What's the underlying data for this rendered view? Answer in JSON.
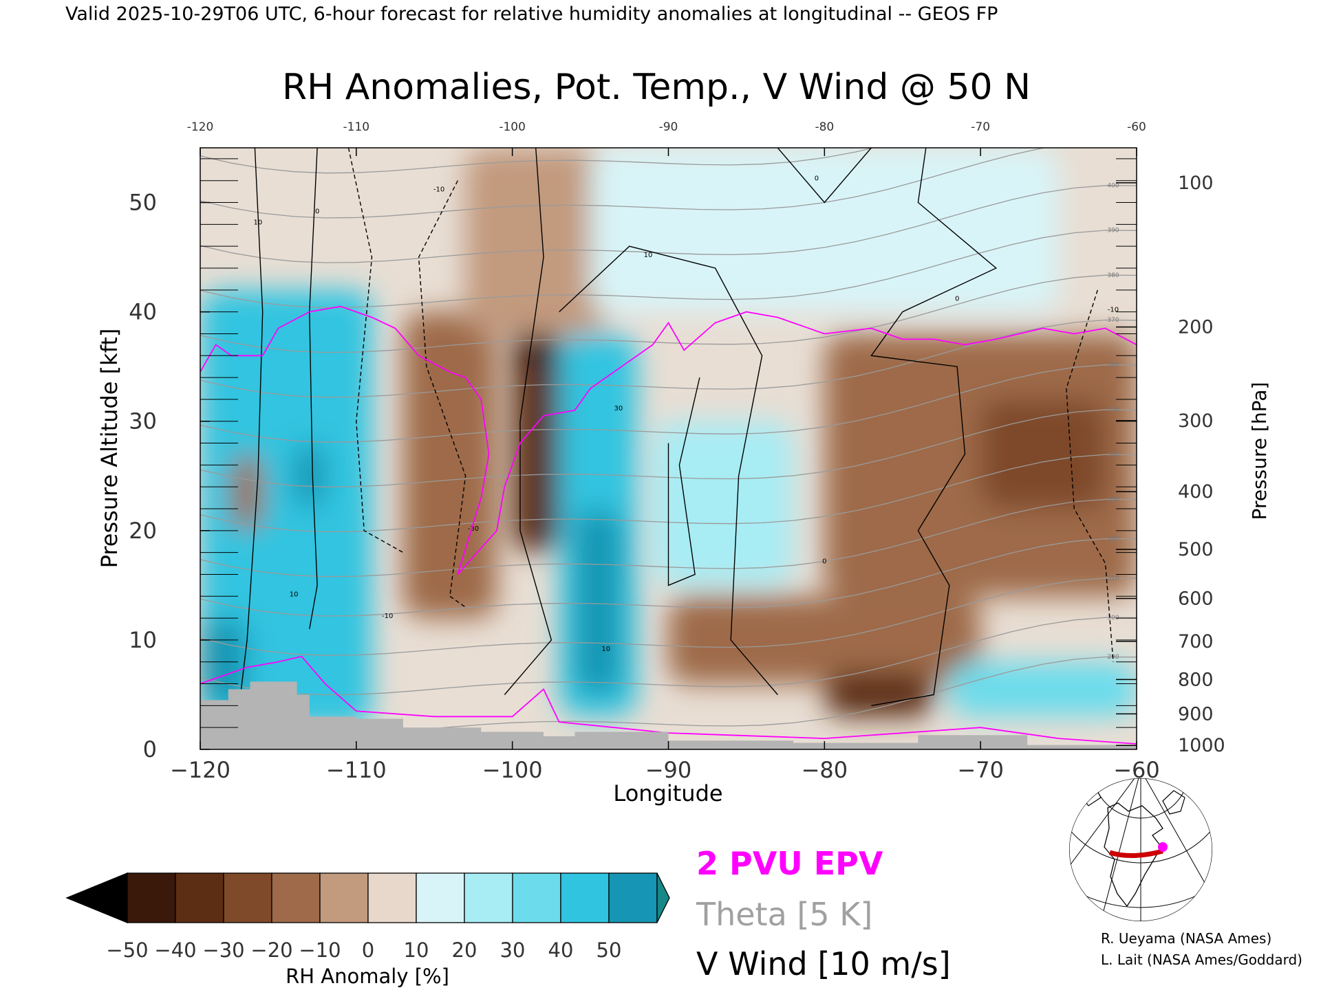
{
  "header": {
    "valid_line": "Valid 2025-10-29T06 UTC, 6-hour forecast for relative humidity anomalies at longitudinal -- GEOS FP"
  },
  "chart_data": {
    "type": "heatmap",
    "title": "RH Anomalies, Pot. Temp., V Wind @ 50 N",
    "xlabel": "Longitude",
    "ylabel_left": "Pressure Altitude [kft]",
    "ylabel_right": "Pressure [hPa]",
    "xlim": [
      -120,
      -60
    ],
    "ylim": [
      0,
      55
    ],
    "x_ticks": [
      -120,
      -110,
      -100,
      -90,
      -80,
      -70,
      -60
    ],
    "x_tick_labels_bottom": [
      "−120",
      "−110",
      "−100",
      "−90",
      "−80",
      "−70",
      "−60"
    ],
    "x_tick_labels_top": [
      "-120",
      "-110",
      "-100",
      "-90",
      "-80",
      "-70",
      "-60"
    ],
    "y_ticks_left": [
      0,
      10,
      20,
      30,
      40,
      50
    ],
    "pressure_ticks": [
      {
        "hpa": 100,
        "label": "100"
      },
      {
        "hpa": 200,
        "label": "200"
      },
      {
        "hpa": 300,
        "label": "300"
      },
      {
        "hpa": 400,
        "label": "400"
      },
      {
        "hpa": 500,
        "label": "500"
      },
      {
        "hpa": 600,
        "label": "600"
      },
      {
        "hpa": 700,
        "label": "700"
      },
      {
        "hpa": 800,
        "label": "800"
      },
      {
        "hpa": 900,
        "label": "900"
      },
      {
        "hpa": 1000,
        "label": "1000"
      }
    ],
    "rh_anomaly_regions": [
      {
        "lon": [
          -120,
          -109
        ],
        "kft": [
          2,
          42
        ],
        "rh": 40
      },
      {
        "lon": [
          -114,
          -112
        ],
        "kft": [
          22,
          28
        ],
        "rh": 50
      },
      {
        "lon": [
          -120,
          -117
        ],
        "kft": [
          4,
          12
        ],
        "rh": 50
      },
      {
        "lon": [
          -118,
          -116
        ],
        "kft": [
          20,
          27
        ],
        "rh": -20
      },
      {
        "lon": [
          -107,
          -101
        ],
        "kft": [
          12,
          40
        ],
        "rh": -20
      },
      {
        "lon": [
          -100,
          -97
        ],
        "kft": [
          18,
          38
        ],
        "rh": -40
      },
      {
        "lon": [
          -100,
          -97
        ],
        "kft": [
          35,
          40
        ],
        "rh": -50
      },
      {
        "lon": [
          -103,
          -94
        ],
        "kft": [
          38,
          55
        ],
        "rh": -10
      },
      {
        "lon": [
          -97,
          -92
        ],
        "kft": [
          3,
          38
        ],
        "rh": 40
      },
      {
        "lon": [
          -96,
          -93
        ],
        "kft": [
          5,
          22
        ],
        "rh": 45
      },
      {
        "lon": [
          -91,
          -82
        ],
        "kft": [
          15,
          30
        ],
        "rh": 20
      },
      {
        "lon": [
          -90,
          -70
        ],
        "kft": [
          6,
          14
        ],
        "rh": -20
      },
      {
        "lon": [
          -80,
          -73
        ],
        "kft": [
          3,
          7
        ],
        "rh": -40
      },
      {
        "lon": [
          -80,
          -60
        ],
        "kft": [
          14,
          38
        ],
        "rh": -20
      },
      {
        "lon": [
          -70,
          -62
        ],
        "kft": [
          22,
          32
        ],
        "rh": -35
      },
      {
        "lon": [
          -72,
          -60
        ],
        "kft": [
          3,
          8
        ],
        "rh": 30
      },
      {
        "lon": [
          -95,
          -65
        ],
        "kft": [
          40,
          55
        ],
        "rh": 10
      }
    ],
    "theta_levels_k": [
      290,
      300,
      310,
      320,
      330,
      340,
      350,
      360,
      370,
      380,
      390,
      400,
      410,
      420
    ],
    "v_wind_contour_labels": [
      "-10",
      "0",
      "10",
      "30"
    ],
    "epv_contour": "2 PVU",
    "colorbar": {
      "label": "RH Anomaly [%]",
      "ticks": [
        -50,
        -40,
        -30,
        -20,
        -10,
        0,
        10,
        20,
        30,
        40,
        50
      ],
      "tick_labels": [
        "−50",
        "−40",
        "−30",
        "−20",
        "−10",
        "0",
        "10",
        "20",
        "30",
        "40",
        "50"
      ],
      "colors": [
        "#3a180a",
        "#5c2e14",
        "#7e4a2a",
        "#9e6a4a",
        "#c29a7e",
        "#e8d8cc",
        "#d8f4f8",
        "#a8ecf4",
        "#6cdcec",
        "#30c4e0",
        "#1696b4"
      ],
      "under_color": "#000000",
      "over_color": "#168888"
    },
    "legend": [
      {
        "label": "2 PVU EPV",
        "color": "#ff00ff"
      },
      {
        "label": "Theta [5 K]",
        "color": "#a0a0a0"
      },
      {
        "label": "V Wind [10 m/s]",
        "color": "#000000"
      }
    ]
  },
  "credits": [
    "R. Ueyama (NASA Ames)",
    "L. Lait (NASA Ames/Goddard)"
  ],
  "inset_map": {
    "highlight_color": "#cc0000",
    "marker_color": "#ff00ff"
  }
}
